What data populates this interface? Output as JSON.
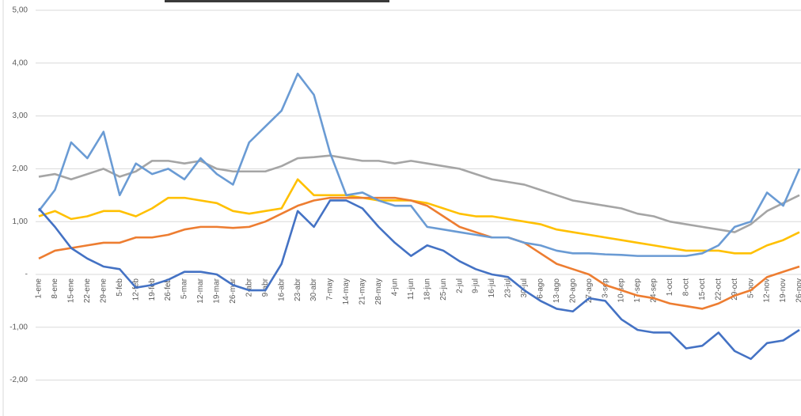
{
  "chart_data": {
    "type": "line",
    "categories": [
      "1-ene",
      "8-ene",
      "15-ene",
      "22-ene",
      "29-ene",
      "5-feb",
      "12-feb",
      "19-feb",
      "26-feb",
      "5-mar",
      "12-mar",
      "19-mar",
      "26-mar",
      "2-abr",
      "9-abr",
      "16-abr",
      "23-abr",
      "30-abr",
      "7-may",
      "14-may",
      "21-may",
      "28-may",
      "4-jun",
      "11-jun",
      "18-jun",
      "25-jun",
      "2-jul",
      "9-jul",
      "16-jul",
      "23-jul",
      "30-jul",
      "6-ago",
      "13-ago",
      "20-ago",
      "27-ago",
      "3-sep",
      "10-sep",
      "17-sep",
      "24-sep",
      "1-oct",
      "8-oct",
      "15-oct",
      "22-oct",
      "29-oct",
      "5-nov",
      "12-nov",
      "19-nov",
      "26-nov"
    ],
    "series": [
      {
        "color": "#a5a5a5",
        "values": [
          1.85,
          1.9,
          1.8,
          1.9,
          2.0,
          1.85,
          1.95,
          2.15,
          2.15,
          2.1,
          2.15,
          2.0,
          1.95,
          1.95,
          1.95,
          2.05,
          2.2,
          2.22,
          2.25,
          2.2,
          2.15,
          2.15,
          2.1,
          2.15,
          2.1,
          2.05,
          2.0,
          1.9,
          1.8,
          1.75,
          1.7,
          1.6,
          1.5,
          1.4,
          1.35,
          1.3,
          1.25,
          1.15,
          1.1,
          1.0,
          0.95,
          0.9,
          0.85,
          0.8,
          0.95,
          1.2,
          1.35,
          1.5
        ]
      },
      {
        "color": "#ffc000",
        "values": [
          1.1,
          1.2,
          1.05,
          1.1,
          1.2,
          1.2,
          1.1,
          1.25,
          1.45,
          1.45,
          1.4,
          1.35,
          1.2,
          1.15,
          1.2,
          1.25,
          1.8,
          1.5,
          1.5,
          1.5,
          1.45,
          1.4,
          1.4,
          1.4,
          1.35,
          1.25,
          1.15,
          1.1,
          1.1,
          1.05,
          1.0,
          0.95,
          0.85,
          0.8,
          0.75,
          0.7,
          0.65,
          0.6,
          0.55,
          0.5,
          0.45,
          0.45,
          0.45,
          0.4,
          0.4,
          0.55,
          0.65,
          0.8
        ]
      },
      {
        "color": "#ed7d31",
        "values": [
          0.3,
          0.45,
          0.5,
          0.55,
          0.6,
          0.6,
          0.7,
          0.7,
          0.75,
          0.85,
          0.9,
          0.9,
          0.88,
          0.9,
          1.0,
          1.15,
          1.3,
          1.4,
          1.45,
          1.45,
          1.45,
          1.45,
          1.45,
          1.4,
          1.3,
          1.1,
          0.9,
          0.8,
          0.7,
          0.7,
          0.6,
          0.4,
          0.2,
          0.1,
          0.0,
          -0.2,
          -0.3,
          -0.4,
          -0.45,
          -0.55,
          -0.6,
          -0.65,
          -0.55,
          -0.4,
          -0.3,
          -0.05,
          0.05,
          0.15
        ]
      },
      {
        "color": "#6a9bd4",
        "values": [
          1.2,
          1.6,
          2.5,
          2.2,
          2.7,
          1.5,
          2.1,
          1.9,
          2.0,
          1.8,
          2.2,
          1.9,
          1.7,
          2.5,
          2.8,
          3.1,
          3.8,
          3.4,
          2.3,
          1.5,
          1.55,
          1.4,
          1.3,
          1.3,
          0.9,
          0.85,
          0.8,
          0.75,
          0.7,
          0.7,
          0.6,
          0.55,
          0.45,
          0.4,
          0.4,
          0.38,
          0.37,
          0.35,
          0.35,
          0.35,
          0.35,
          0.4,
          0.55,
          0.9,
          1.0,
          1.55,
          1.3,
          2.0
        ]
      },
      {
        "color": "#4472c4",
        "values": [
          1.25,
          0.9,
          0.5,
          0.3,
          0.15,
          0.1,
          -0.25,
          -0.2,
          -0.1,
          0.05,
          0.05,
          0.0,
          -0.2,
          -0.3,
          -0.3,
          0.2,
          1.2,
          0.9,
          1.4,
          1.4,
          1.25,
          0.9,
          0.6,
          0.35,
          0.55,
          0.45,
          0.25,
          0.1,
          0.0,
          -0.05,
          -0.3,
          -0.5,
          -0.65,
          -0.7,
          -0.45,
          -0.5,
          -0.85,
          -1.05,
          -1.1,
          -1.1,
          -1.4,
          -1.35,
          -1.1,
          -1.45,
          -1.6,
          -1.3,
          -1.25,
          -1.05
        ]
      }
    ],
    "ylim": [
      -2.68,
      5
    ],
    "yticks": [
      {
        "value": -2,
        "label": "-2,00"
      },
      {
        "value": -1,
        "label": "-1,00"
      },
      {
        "value": 0,
        "label": "-"
      },
      {
        "value": 1,
        "label": "1,00"
      },
      {
        "value": 2,
        "label": "2,00"
      },
      {
        "value": 3,
        "label": "3,00"
      },
      {
        "value": 4,
        "label": "4,00"
      },
      {
        "value": 5,
        "label": "5,00"
      }
    ],
    "grid": true
  }
}
